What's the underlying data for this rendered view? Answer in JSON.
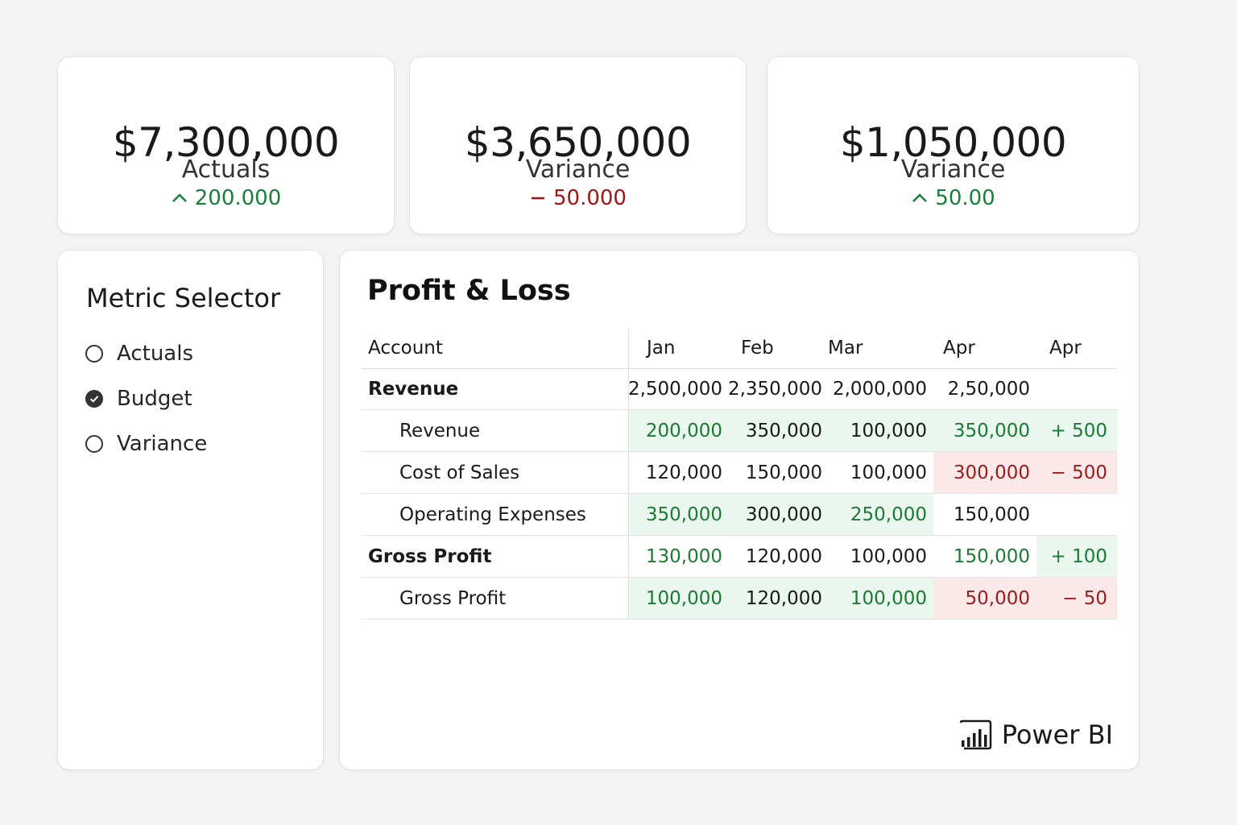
{
  "kpis": [
    {
      "value": "$7,300,000",
      "label": "Actuals",
      "delta": "200.000",
      "direction": "up"
    },
    {
      "value": "$3,650,000",
      "label": "Variance",
      "delta": "50.000",
      "direction": "down"
    },
    {
      "value": "$1,050,000",
      "label": "Variance",
      "delta": "50.00",
      "direction": "up"
    }
  ],
  "selector": {
    "title": "Metric Selector",
    "options": [
      {
        "label": "Actuals",
        "checked": false
      },
      {
        "label": "Budget",
        "checked": true
      },
      {
        "label": "Variance",
        "checked": false
      }
    ]
  },
  "pl": {
    "title": "Profit & Loss",
    "columns": [
      "Account",
      "Jan",
      "Feb",
      "Mar",
      "Apr",
      "Apr"
    ],
    "rows": [
      {
        "account": "Revenue",
        "bold": true,
        "indent": false,
        "cells": [
          "2,500,000",
          "2,350,000",
          "2,000,000",
          "2,50,000",
          ""
        ]
      },
      {
        "account": "Revenue",
        "bold": false,
        "indent": true,
        "cells": [
          "200,000",
          "350,000",
          "100,000",
          "350,000",
          "+ 500"
        ]
      },
      {
        "account": "Cost of Sales",
        "bold": false,
        "indent": true,
        "cells": [
          "120,000",
          "150,000",
          "100,000",
          "300,000",
          "− 500"
        ]
      },
      {
        "account": "Operating Expenses",
        "bold": false,
        "indent": true,
        "cells": [
          "350,000",
          "300,000",
          "250,000",
          "150,000",
          ""
        ]
      },
      {
        "account": "Gross Profit",
        "bold": true,
        "indent": false,
        "cells": [
          "130,000",
          "120,000",
          "100,000",
          "150,000",
          "+ 100"
        ]
      },
      {
        "account": "Gross Profit",
        "bold": false,
        "indent": true,
        "cells": [
          "100,000",
          "120,000",
          "100,000",
          "50,000",
          "− 50"
        ]
      }
    ]
  },
  "brand": {
    "label": "Power BI",
    "icon": "power-bi-icon"
  },
  "colors": {
    "positive": "#1b7a34",
    "negative": "#9b1c1c",
    "positive_bg": "#e9f7ee",
    "negative_bg": "#fbe9e9"
  }
}
